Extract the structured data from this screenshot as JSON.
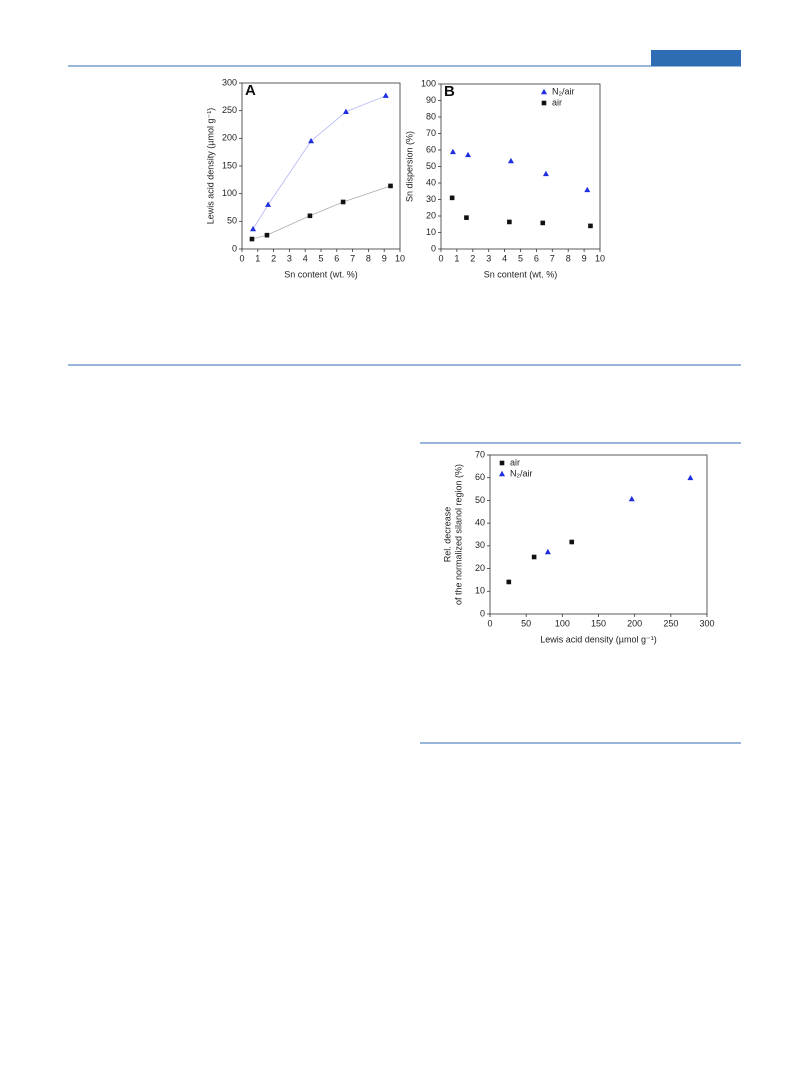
{
  "chart_data": [
    {
      "type": "scatter",
      "title": "A",
      "xlabel": "Sn content (wt. %)",
      "ylabel": [
        "Lewis acid density (µmol g⁻¹)"
      ],
      "xlim": [
        0,
        10
      ],
      "xticks": [
        0,
        1,
        2,
        3,
        4,
        5,
        6,
        7,
        8,
        9,
        10
      ],
      "ylim": [
        0,
        300
      ],
      "yticks": [
        0,
        50,
        100,
        150,
        200,
        250,
        300
      ],
      "fit": true,
      "series": [
        {
          "color": "#1f2fe0",
          "marker": "triangle",
          "x": [
            0.7,
            1.65,
            4.37,
            6.58,
            9.1
          ],
          "values": [
            36,
            80,
            195,
            248,
            277
          ]
        },
        {
          "color": "#111111",
          "marker": "square",
          "x": [
            0.63,
            1.58,
            4.3,
            6.4,
            9.4
          ],
          "values": [
            18,
            25,
            60,
            85,
            114
          ]
        }
      ]
    },
    {
      "type": "scatter",
      "title": "B",
      "xlabel": "Sn content (wt. %)",
      "ylabel": [
        "Sn dispersion (%)"
      ],
      "xlim": [
        0,
        10
      ],
      "xticks": [
        0,
        1,
        2,
        3,
        4,
        5,
        6,
        7,
        8,
        9,
        10
      ],
      "ylim": [
        0,
        100
      ],
      "yticks": [
        0,
        10,
        20,
        30,
        40,
        50,
        60,
        70,
        80,
        90,
        100
      ],
      "legend": "upper right",
      "series": [
        {
          "name": "N₂/air",
          "color": "#1f2fe0",
          "marker": "triangle",
          "x": [
            0.75,
            1.7,
            4.4,
            6.6,
            9.2
          ],
          "values": [
            58.8,
            57,
            53.3,
            45.5,
            35.8
          ]
        },
        {
          "name": "air",
          "color": "#111111",
          "marker": "square",
          "x": [
            0.7,
            1.6,
            4.3,
            6.4,
            9.4
          ],
          "values": [
            31,
            19,
            16.4,
            15.8,
            14
          ]
        }
      ]
    },
    {
      "type": "scatter",
      "xlabel": "Lewis acid density (µmol g⁻¹)",
      "ylabel": [
        "Rel. decrease",
        "of the normalized silanol region (%)"
      ],
      "xlim": [
        0,
        300
      ],
      "xticks": [
        0,
        50,
        100,
        150,
        200,
        250,
        300
      ],
      "ylim": [
        0,
        70
      ],
      "yticks": [
        0,
        10,
        20,
        30,
        40,
        50,
        60,
        70
      ],
      "legend": "upper left",
      "series": [
        {
          "name": "air",
          "color": "#111111",
          "marker": "square",
          "x": [
            26,
            61,
            113
          ],
          "values": [
            14.1,
            25.1,
            31.7
          ]
        },
        {
          "name": "N₂/air",
          "color": "#1f2fe0",
          "marker": "triangle",
          "x": [
            80,
            196,
            277
          ],
          "values": [
            27.3,
            50.6,
            59.9
          ]
        }
      ]
    }
  ]
}
